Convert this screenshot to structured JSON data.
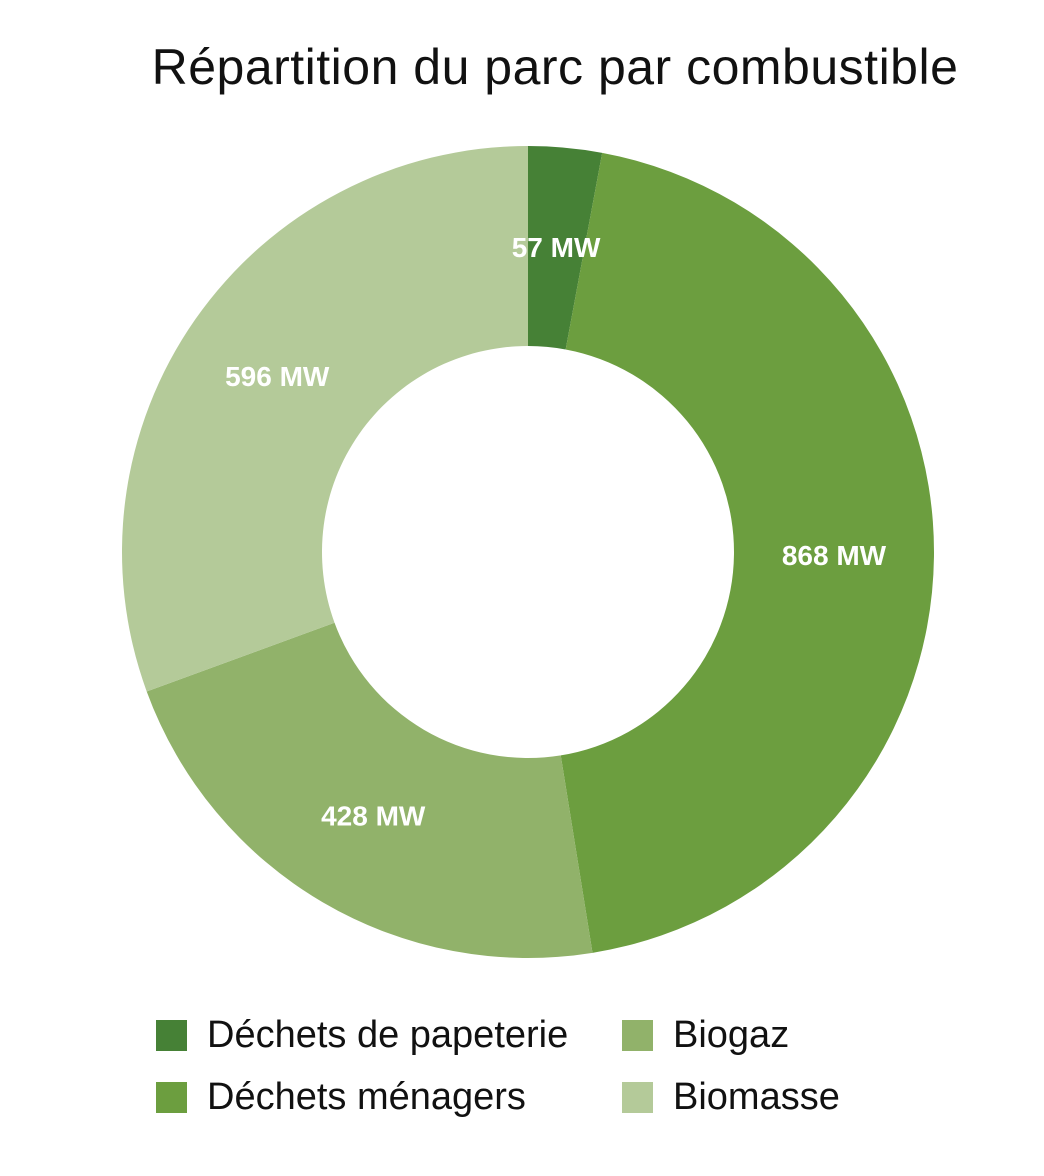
{
  "chart_data": {
    "type": "pie",
    "variant": "donut",
    "title": "Répartition du parc par combustible",
    "unit": "MW",
    "categories": [
      "Déchets de papeterie",
      "Déchets ménagers",
      "Biogaz",
      "Biomasse"
    ],
    "values": [
      57,
      868,
      428,
      596
    ],
    "data_labels": [
      "57 MW",
      "868 MW",
      "428 MW",
      "596 MW"
    ],
    "colors": [
      "#468136",
      "#6c9e3f",
      "#91b26a",
      "#b4ca99"
    ],
    "start_angle": "12 o'clock",
    "direction": "clockwise",
    "label_color": "#ffffff",
    "legend_position": "bottom",
    "legend": [
      {
        "label": "Déchets de papeterie",
        "color": "#468136"
      },
      {
        "label": "Biogaz",
        "color": "#91b26a"
      },
      {
        "label": "Déchets ménagers",
        "color": "#6c9e3f"
      },
      {
        "label": "Biomasse",
        "color": "#b4ca99"
      }
    ]
  }
}
